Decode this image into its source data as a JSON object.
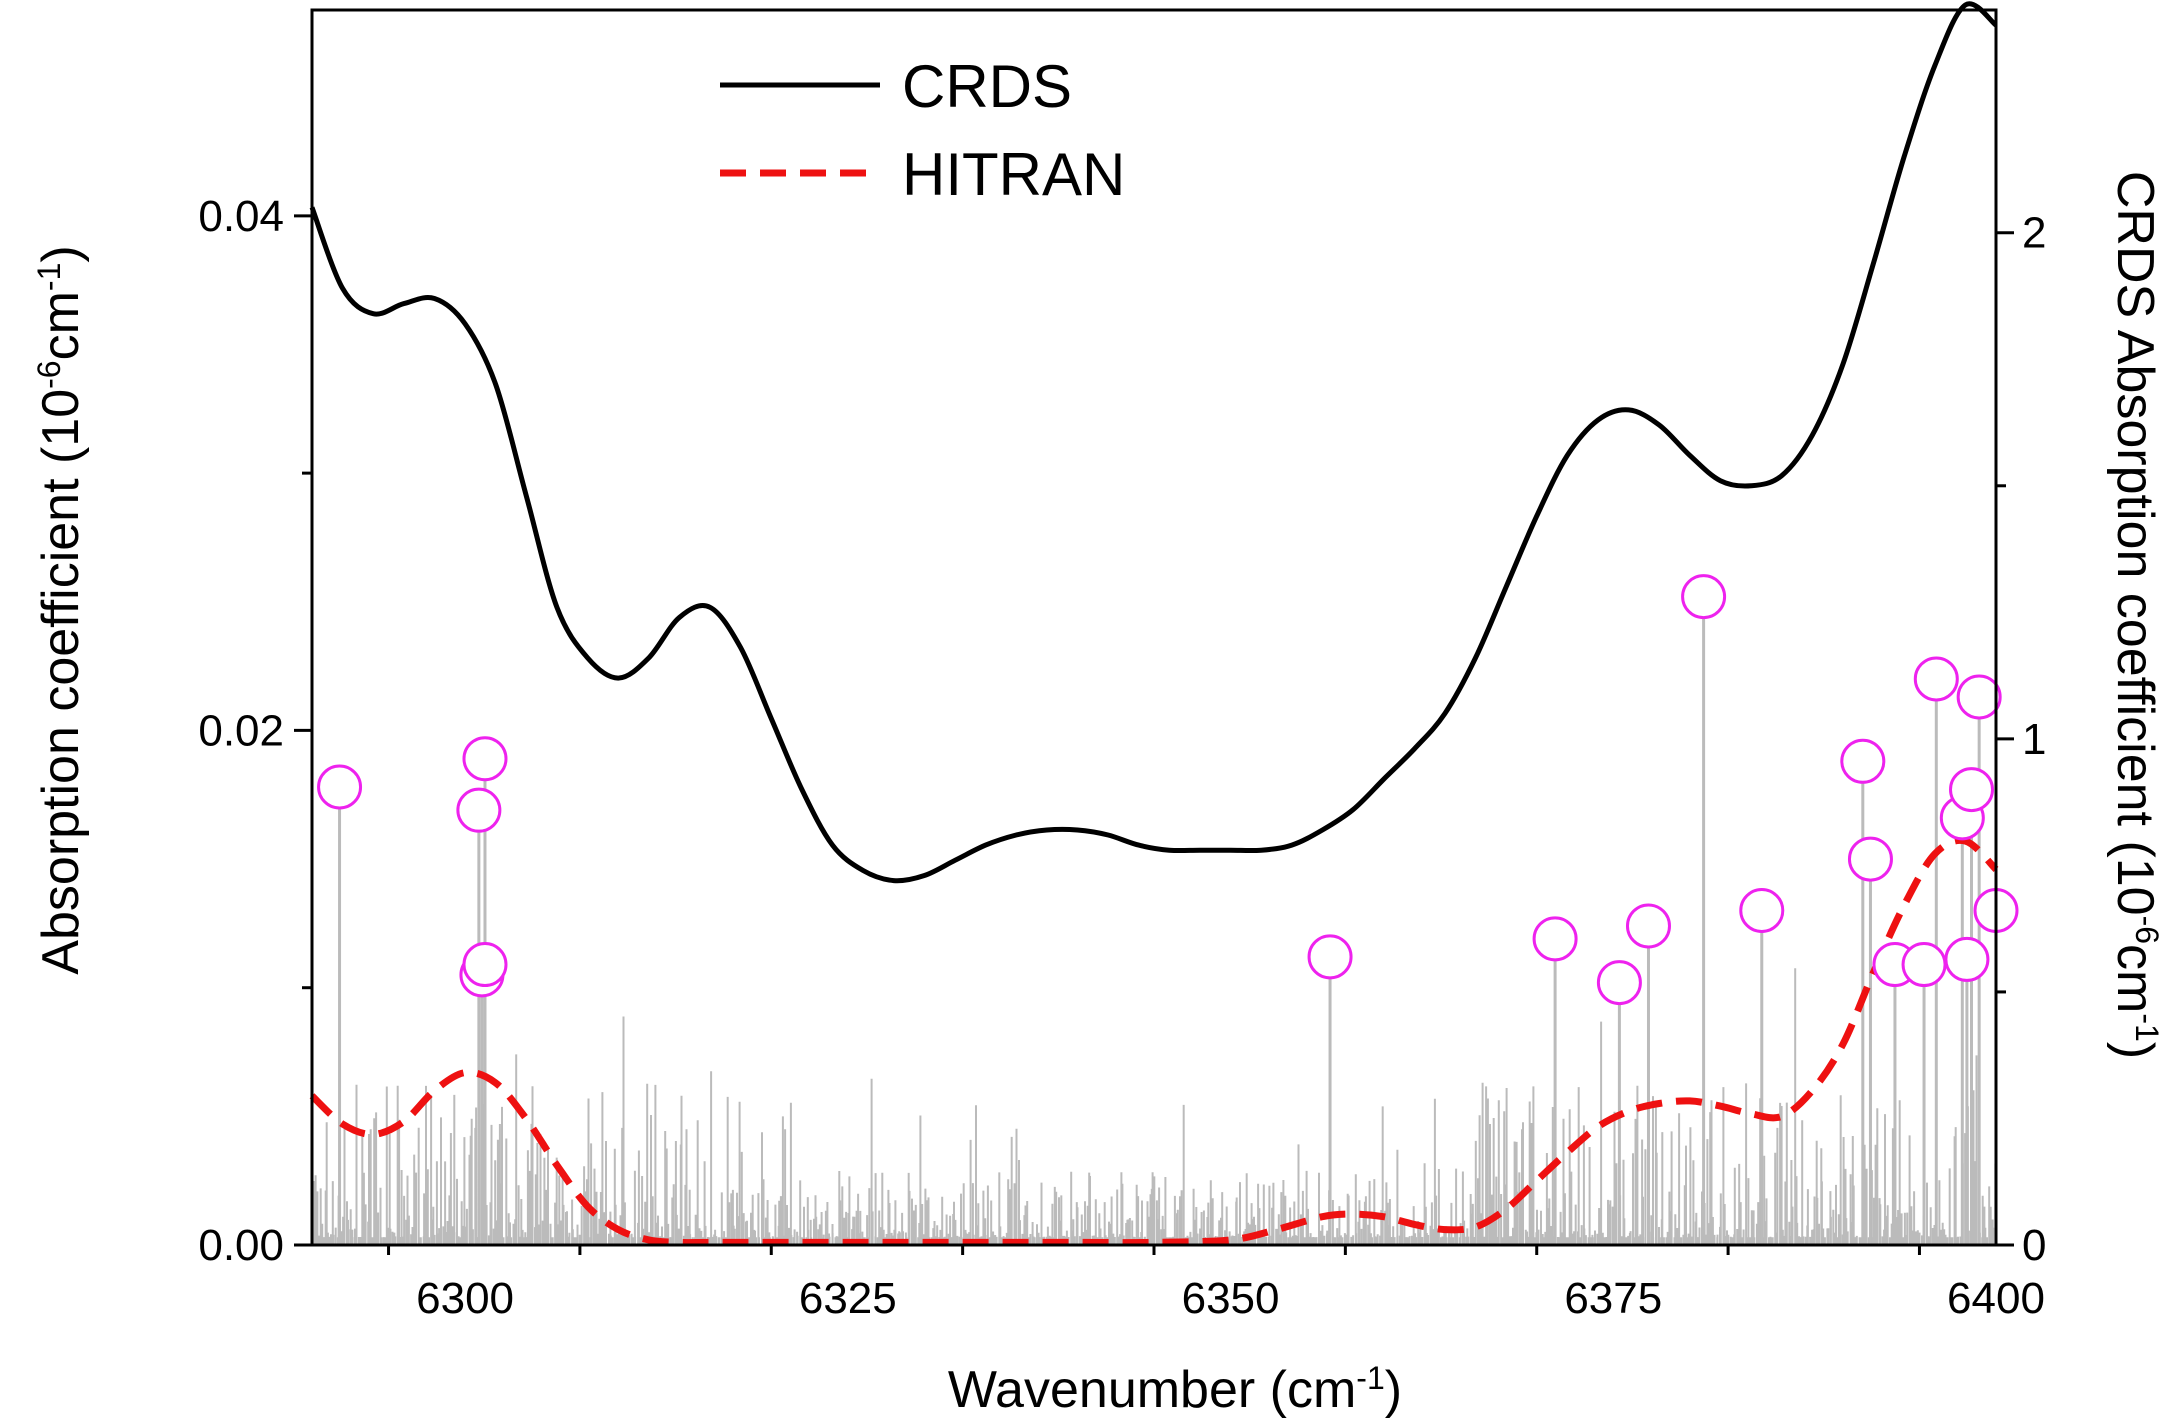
{
  "chart_data": {
    "type": "line",
    "title": "",
    "xlabel": "Wavenumber (cm-1)",
    "ylabel_left": "Absorption coefficient (10-6cm-1)",
    "ylabel_right": "CRDS Absorption coefficient (10-6cm-1)",
    "xlim": [
      6290,
      6400
    ],
    "ylim_left": [
      0,
      0.048
    ],
    "ylim_right": [
      0,
      2.44
    ],
    "x_ticks": [
      6300,
      6325,
      6350,
      6375,
      6400
    ],
    "x_tick_labels": [
      "6300",
      "6325",
      "6350",
      "6375",
      "6400"
    ],
    "y_left_ticks": [
      0.0,
      0.02,
      0.04
    ],
    "y_left_tick_labels": [
      "0.00",
      "0.02",
      "0.04"
    ],
    "y_right_ticks": [
      0,
      1,
      2
    ],
    "y_right_tick_labels": [
      "0",
      "1",
      "2"
    ],
    "grid": false,
    "legend_position": "top-center",
    "colors": {
      "crds": "#000000",
      "hitran": "#ee1111",
      "sticks": "#bbbbbb",
      "markers": "#ee22ee"
    },
    "legend": [
      {
        "label": "CRDS",
        "style": "solid",
        "color": "#000000"
      },
      {
        "label": "HITRAN",
        "style": "dashed",
        "color": "#ee1111"
      }
    ],
    "series": [
      {
        "name": "CRDS",
        "axis": "right",
        "x": [
          6290,
          6292,
          6294,
          6296,
          6298,
          6300,
          6302,
          6304,
          6306,
          6308,
          6310,
          6312,
          6314,
          6316,
          6318,
          6320,
          6322,
          6324,
          6326,
          6328,
          6330,
          6332,
          6334,
          6336,
          6338,
          6340,
          6342,
          6344,
          6346,
          6348,
          6350,
          6352,
          6354,
          6356,
          6358,
          6360,
          6362,
          6364,
          6366,
          6368,
          6370,
          6372,
          6374,
          6376,
          6378,
          6380,
          6382,
          6384,
          6386,
          6388,
          6390,
          6392,
          6394,
          6396,
          6398,
          6400
        ],
        "y": [
          2.05,
          1.89,
          1.84,
          1.86,
          1.87,
          1.82,
          1.7,
          1.48,
          1.26,
          1.16,
          1.12,
          1.16,
          1.24,
          1.26,
          1.18,
          1.04,
          0.9,
          0.79,
          0.74,
          0.72,
          0.73,
          0.76,
          0.79,
          0.81,
          0.82,
          0.82,
          0.81,
          0.79,
          0.78,
          0.78,
          0.78,
          0.78,
          0.79,
          0.82,
          0.86,
          0.92,
          0.98,
          1.05,
          1.16,
          1.3,
          1.44,
          1.56,
          1.63,
          1.65,
          1.62,
          1.56,
          1.51,
          1.5,
          1.52,
          1.6,
          1.74,
          1.94,
          2.15,
          2.33,
          2.45,
          2.41
        ]
      },
      {
        "name": "HITRAN",
        "axis": "left",
        "x": [
          6290,
          6292,
          6294,
          6296,
          6298,
          6300,
          6302,
          6304,
          6306,
          6308,
          6310,
          6312,
          6314,
          6316,
          6320,
          6325,
          6330,
          6335,
          6340,
          6345,
          6350,
          6353,
          6356,
          6358,
          6360,
          6362,
          6364,
          6366,
          6368,
          6370,
          6372,
          6374,
          6376,
          6378,
          6380,
          6382,
          6384,
          6386,
          6388,
          6390,
          6392,
          6394,
          6396,
          6398,
          6400
        ],
        "y": [
          0.0058,
          0.0047,
          0.0043,
          0.0048,
          0.006,
          0.0067,
          0.0063,
          0.0049,
          0.0031,
          0.0015,
          0.0006,
          0.0002,
          0.0001,
          0.0001,
          0.0001,
          0.0001,
          0.0001,
          0.0001,
          0.0001,
          0.0001,
          0.0002,
          0.0006,
          0.0011,
          0.0012,
          0.0011,
          0.0008,
          0.0006,
          0.0007,
          0.0014,
          0.0025,
          0.0036,
          0.0046,
          0.0052,
          0.0055,
          0.0056,
          0.0054,
          0.0051,
          0.005,
          0.006,
          0.0078,
          0.0106,
          0.0132,
          0.0152,
          0.0157,
          0.0146
        ]
      }
    ],
    "marked_lines": [
      {
        "x": 6291.8,
        "y": 0.0178
      },
      {
        "x": 6300.9,
        "y": 0.0169
      },
      {
        "x": 6301.3,
        "y": 0.0189
      },
      {
        "x": 6301.1,
        "y": 0.0105
      },
      {
        "x": 6301.3,
        "y": 0.0109
      },
      {
        "x": 6356.5,
        "y": 0.0112
      },
      {
        "x": 6371.2,
        "y": 0.0119
      },
      {
        "x": 6375.4,
        "y": 0.0102
      },
      {
        "x": 6377.3,
        "y": 0.0124
      },
      {
        "x": 6380.9,
        "y": 0.0252
      },
      {
        "x": 6384.7,
        "y": 0.013
      },
      {
        "x": 6391.3,
        "y": 0.0188
      },
      {
        "x": 6391.8,
        "y": 0.015
      },
      {
        "x": 6393.4,
        "y": 0.0109
      },
      {
        "x": 6395.3,
        "y": 0.0109
      },
      {
        "x": 6396.1,
        "y": 0.022
      },
      {
        "x": 6397.8,
        "y": 0.0166
      },
      {
        "x": 6398.1,
        "y": 0.0111
      },
      {
        "x": 6398.4,
        "y": 0.0177
      },
      {
        "x": 6398.9,
        "y": 0.0213
      },
      {
        "x": 6400.0,
        "y": 0.013
      }
    ]
  }
}
